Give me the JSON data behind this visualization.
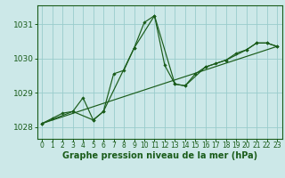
{
  "background_color": "#cce8e8",
  "grid_color": "#99cccc",
  "line_color": "#1a5c1a",
  "xlabel": "Graphe pression niveau de la mer (hPa)",
  "xlabel_fontsize": 7,
  "xtick_fontsize": 5.5,
  "ytick_fontsize": 6.5,
  "xlim": [
    -0.5,
    23.5
  ],
  "ylim": [
    1027.65,
    1031.55
  ],
  "yticks": [
    1028,
    1029,
    1030,
    1031
  ],
  "xticks": [
    0,
    1,
    2,
    3,
    4,
    5,
    6,
    7,
    8,
    9,
    10,
    11,
    12,
    13,
    14,
    15,
    16,
    17,
    18,
    19,
    20,
    21,
    22,
    23
  ],
  "series1_x": [
    0,
    1,
    2,
    3,
    4,
    5,
    6,
    7,
    8,
    9,
    10,
    11,
    12,
    13,
    14,
    15,
    16,
    17,
    18,
    19,
    20,
    21,
    22,
    23
  ],
  "series1_y": [
    1028.1,
    1028.25,
    1028.4,
    1028.45,
    1028.85,
    1028.2,
    1028.45,
    1029.55,
    1029.65,
    1030.3,
    1031.05,
    1031.25,
    1029.8,
    1029.25,
    1029.2,
    1029.55,
    1029.75,
    1029.85,
    1029.95,
    1030.15,
    1030.25,
    1030.45,
    1030.45,
    1030.35
  ],
  "series2_x": [
    0,
    3,
    5,
    6,
    9,
    11,
    13,
    14,
    16,
    18,
    20,
    21,
    22,
    23
  ],
  "series2_y": [
    1028.1,
    1028.45,
    1028.2,
    1028.45,
    1030.3,
    1031.25,
    1029.25,
    1029.2,
    1029.75,
    1029.95,
    1030.25,
    1030.45,
    1030.45,
    1030.35
  ],
  "series3_x": [
    0,
    23
  ],
  "series3_y": [
    1028.1,
    1030.35
  ]
}
